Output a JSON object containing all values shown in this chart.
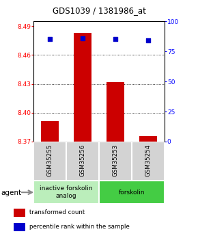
{
  "title": "GDS1039 / 1381986_at",
  "samples": [
    "GSM35255",
    "GSM35256",
    "GSM35253",
    "GSM35254"
  ],
  "bar_values": [
    8.391,
    8.483,
    8.432,
    8.376
  ],
  "bar_bottom": 8.37,
  "percentile_values": [
    85,
    86,
    85,
    84
  ],
  "ylim_left": [
    8.37,
    8.495
  ],
  "ylim_right": [
    0,
    100
  ],
  "yticks_left": [
    8.37,
    8.4,
    8.43,
    8.46,
    8.49
  ],
  "yticks_right": [
    0,
    25,
    50,
    75,
    100
  ],
  "bar_color": "#cc0000",
  "percentile_color": "#0000cc",
  "groups": [
    {
      "label": "inactive forskolin\nanalog",
      "samples": [
        0,
        1
      ],
      "color": "#bbeebb"
    },
    {
      "label": "forskolin",
      "samples": [
        2,
        3
      ],
      "color": "#44cc44"
    }
  ],
  "agent_label": "agent",
  "legend_items": [
    {
      "color": "#cc0000",
      "label": "transformed count"
    },
    {
      "color": "#0000cc",
      "label": "percentile rank within the sample"
    }
  ],
  "bar_width": 0.55
}
